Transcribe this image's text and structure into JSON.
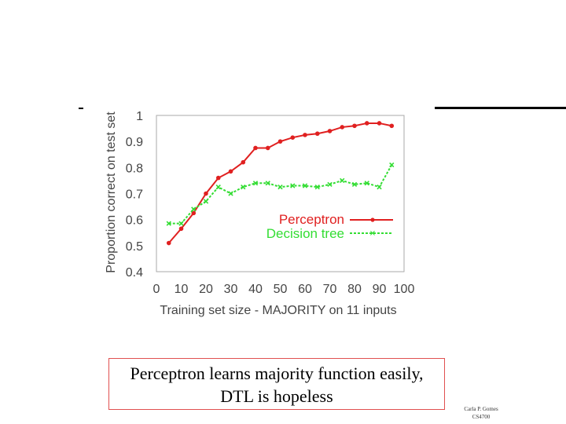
{
  "caption": {
    "line1": "Perceptron learns majority function easily,",
    "line2": "DTL is hopeless"
  },
  "footer": {
    "author": "Carla P. Gomes",
    "course": "CS4700"
  },
  "colors": {
    "perceptron": "#e02020",
    "decision_tree": "#33dd33",
    "axis_text": "#444444",
    "caption_border": "#e05050"
  },
  "chart_data": {
    "type": "line",
    "title": "",
    "xlabel": "Training set size - MAJORITY on 11 inputs",
    "ylabel": "Proportion correct on test set",
    "xlim": [
      0,
      100
    ],
    "ylim": [
      0.4,
      1
    ],
    "xticks": [
      0,
      10,
      20,
      30,
      40,
      50,
      60,
      70,
      80,
      90,
      100
    ],
    "yticks": [
      0.4,
      0.5,
      0.6,
      0.7,
      0.8,
      0.9,
      1
    ],
    "ytick_labels": [
      "0.4",
      "0.5",
      "0.6",
      "0.7",
      "0.8",
      "0.9",
      "1"
    ],
    "grid": false,
    "legend": "center-right",
    "series": [
      {
        "name": "Perceptron",
        "style": "solid",
        "marker": "circle",
        "x": [
          5,
          10,
          15,
          20,
          25,
          30,
          35,
          40,
          45,
          50,
          55,
          60,
          65,
          70,
          75,
          80,
          85,
          90,
          95
        ],
        "y": [
          0.51,
          0.565,
          0.625,
          0.7,
          0.76,
          0.785,
          0.82,
          0.875,
          0.875,
          0.9,
          0.915,
          0.925,
          0.93,
          0.94,
          0.955,
          0.96,
          0.97,
          0.97,
          0.96
        ]
      },
      {
        "name": "Decision tree",
        "style": "dotted",
        "marker": "x",
        "x": [
          5,
          10,
          15,
          20,
          25,
          30,
          35,
          40,
          45,
          50,
          55,
          60,
          65,
          70,
          75,
          80,
          85,
          90,
          95
        ],
        "y": [
          0.585,
          0.585,
          0.64,
          0.67,
          0.725,
          0.7,
          0.725,
          0.74,
          0.74,
          0.725,
          0.73,
          0.73,
          0.725,
          0.735,
          0.75,
          0.735,
          0.74,
          0.725,
          0.81
        ]
      }
    ]
  }
}
